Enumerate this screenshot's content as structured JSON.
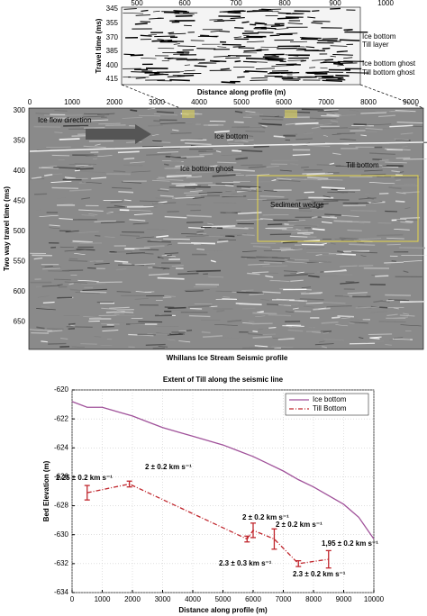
{
  "seismic_inset": {
    "xticks": [
      "500",
      "600",
      "700",
      "800",
      "900",
      "1000"
    ],
    "yticks": [
      "345",
      "355",
      "370",
      "385",
      "400",
      "415"
    ],
    "ylabel": "Travel time (ms)",
    "xlabel": "Distance along profile (m)",
    "labels": [
      "Ice bottom",
      "Till layer",
      "Ice bottom ghost",
      "Till bottom ghost"
    ]
  },
  "seismic_profile": {
    "xticks": [
      "0",
      "1000",
      "2000",
      "3000",
      "4000",
      "5000",
      "6000",
      "7000",
      "8000",
      "9000"
    ],
    "yticks": [
      "300",
      "350",
      "400",
      "450",
      "500",
      "550",
      "600",
      "650"
    ],
    "ylabel": "Two way travel time (ms)",
    "annotations": [
      "Ice flow direction",
      "Ice bottom",
      "Ice bottom ghost",
      "Till bottom",
      "Sediment wedge"
    ],
    "caption": "Whillans Ice Stream Seismic profile"
  },
  "chart_data": {
    "type": "line",
    "title": "Extent of Till along the seismic line",
    "xlabel": "Distance along profile (m)",
    "ylabel": "Bed Elevation (m)",
    "xlim": [
      0,
      10000
    ],
    "ylim": [
      -634,
      -620
    ],
    "xticks": [
      0,
      1000,
      2000,
      3000,
      4000,
      5000,
      6000,
      7000,
      8000,
      9000,
      10000
    ],
    "yticks": [
      -634,
      -632,
      -630,
      -628,
      -626,
      -624,
      -622,
      -620
    ],
    "grid": true,
    "legend": "upper right",
    "series": [
      {
        "name": "Ice bottom",
        "color": "#a0529a",
        "style": "solid",
        "x": [
          0,
          500,
          1000,
          1500,
          2000,
          2500,
          3000,
          3500,
          4000,
          4500,
          5000,
          5500,
          6000,
          6500,
          7000,
          7500,
          8000,
          8500,
          9000,
          9500,
          10000
        ],
        "values": [
          -620.8,
          -621.2,
          -621.2,
          -621.5,
          -621.8,
          -622.2,
          -622.6,
          -622.9,
          -623.2,
          -623.5,
          -623.8,
          -624.2,
          -624.6,
          -625.1,
          -625.6,
          -626.2,
          -626.7,
          -627.3,
          -627.9,
          -628.8,
          -630.3
        ]
      },
      {
        "name": "Till Bottom",
        "color": "#c0262d",
        "style": "dashdot",
        "x": [
          500,
          1900,
          5800,
          6000,
          6700,
          7500,
          8500
        ],
        "values": [
          -627.1,
          -626.5,
          -630.3,
          -629.7,
          -630.3,
          -632.0,
          -631.7
        ],
        "errors": [
          0.5,
          0.2,
          0.2,
          0.5,
          0.7,
          0.2,
          0.6
        ]
      }
    ],
    "annotations": [
      "2.25 ± 0.2 km s⁻¹",
      "2 ± 0.2 km s⁻¹",
      "2 ± 0.2 km s⁻¹",
      "2 ± 0.2 km s⁻¹",
      "2.3 ± 0.3 km s⁻¹",
      "1,95 ± 0.2 km s⁻¹",
      "2.3 ± 0.2 km s⁻¹"
    ]
  }
}
